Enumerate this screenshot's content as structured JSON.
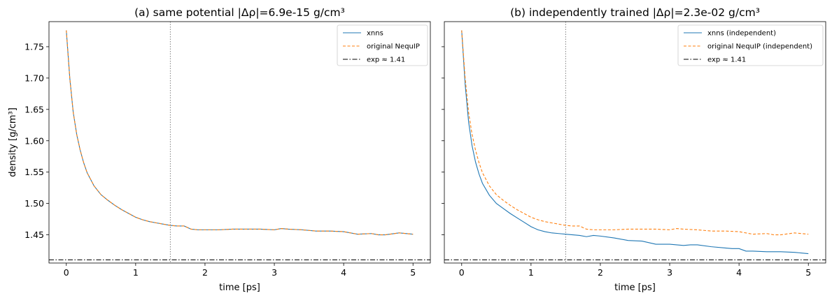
{
  "colors": {
    "blue": "#1f77b4",
    "orange": "#ff7f0e",
    "black": "#000000",
    "gray": "#808080"
  },
  "chart_data": [
    {
      "type": "line",
      "title": "(a) same potential  |Δρ|=6.9e-15 g/cm³",
      "xlabel": "time [ps]",
      "ylabel": "density [g/cm³]",
      "xlim": [
        -0.25,
        5.25
      ],
      "ylim": [
        1.405,
        1.79
      ],
      "xticks": [
        0,
        1,
        2,
        3,
        4,
        5
      ],
      "yticks": [
        1.45,
        1.5,
        1.55,
        1.6,
        1.65,
        1.7,
        1.75
      ],
      "ytick_labels": [
        "1.45",
        "1.50",
        "1.55",
        "1.60",
        "1.65",
        "1.70",
        "1.75"
      ],
      "vline": 1.5,
      "legend_position": "top-right",
      "series": [
        {
          "name": "xnns",
          "style": "solid",
          "color": "#1f77b4",
          "x": [
            0,
            0.05,
            0.1,
            0.15,
            0.2,
            0.25,
            0.3,
            0.4,
            0.5,
            0.6,
            0.7,
            0.8,
            0.9,
            1.0,
            1.1,
            1.2,
            1.3,
            1.4,
            1.5,
            1.6,
            1.7,
            1.8,
            1.9,
            2.0,
            2.2,
            2.4,
            2.6,
            2.8,
            3.0,
            3.1,
            3.2,
            3.4,
            3.6,
            3.8,
            4.0,
            4.2,
            4.4,
            4.5,
            4.6,
            4.8,
            5.0
          ],
          "values": [
            1.776,
            1.7,
            1.645,
            1.61,
            1.585,
            1.565,
            1.549,
            1.528,
            1.514,
            1.505,
            1.497,
            1.49,
            1.484,
            1.478,
            1.474,
            1.471,
            1.469,
            1.467,
            1.465,
            1.464,
            1.464,
            1.459,
            1.458,
            1.458,
            1.458,
            1.459,
            1.459,
            1.459,
            1.458,
            1.46,
            1.459,
            1.458,
            1.456,
            1.456,
            1.455,
            1.451,
            1.452,
            1.45,
            1.45,
            1.453,
            1.451
          ]
        },
        {
          "name": "original NequIP",
          "style": "dashed",
          "color": "#ff7f0e",
          "x": [
            0,
            0.05,
            0.1,
            0.15,
            0.2,
            0.25,
            0.3,
            0.4,
            0.5,
            0.6,
            0.7,
            0.8,
            0.9,
            1.0,
            1.1,
            1.2,
            1.3,
            1.4,
            1.5,
            1.6,
            1.7,
            1.8,
            1.9,
            2.0,
            2.2,
            2.4,
            2.6,
            2.8,
            3.0,
            3.1,
            3.2,
            3.4,
            3.6,
            3.8,
            4.0,
            4.2,
            4.4,
            4.5,
            4.6,
            4.8,
            5.0
          ],
          "values": [
            1.776,
            1.7,
            1.645,
            1.61,
            1.585,
            1.565,
            1.549,
            1.528,
            1.514,
            1.505,
            1.497,
            1.49,
            1.484,
            1.478,
            1.474,
            1.471,
            1.469,
            1.467,
            1.465,
            1.464,
            1.464,
            1.459,
            1.458,
            1.458,
            1.458,
            1.459,
            1.459,
            1.459,
            1.458,
            1.46,
            1.459,
            1.458,
            1.456,
            1.456,
            1.455,
            1.451,
            1.452,
            1.45,
            1.45,
            1.453,
            1.451
          ]
        },
        {
          "name": "exp ≈ 1.41",
          "style": "dashdot",
          "color": "#000000",
          "x": [
            -0.25,
            5.25
          ],
          "values": [
            1.41,
            1.41
          ]
        }
      ]
    },
    {
      "type": "line",
      "title": "(b) independently trained  |Δρ|=2.3e-02 g/cm³",
      "xlabel": "time [ps]",
      "ylabel": "",
      "xlim": [
        -0.25,
        5.25
      ],
      "ylim": [
        1.405,
        1.79
      ],
      "xticks": [
        0,
        1,
        2,
        3,
        4,
        5
      ],
      "yticks": [
        1.45,
        1.5,
        1.55,
        1.6,
        1.65,
        1.7,
        1.75
      ],
      "vline": 1.5,
      "legend_position": "top-right",
      "series": [
        {
          "name": "xnns (independent)",
          "style": "solid",
          "color": "#1f77b4",
          "x": [
            0,
            0.05,
            0.1,
            0.15,
            0.2,
            0.25,
            0.3,
            0.4,
            0.5,
            0.6,
            0.7,
            0.8,
            0.9,
            1.0,
            1.1,
            1.2,
            1.3,
            1.4,
            1.5,
            1.6,
            1.7,
            1.8,
            1.9,
            2.0,
            2.2,
            2.4,
            2.6,
            2.8,
            3.0,
            3.1,
            3.2,
            3.3,
            3.4,
            3.6,
            3.8,
            3.9,
            4.0,
            4.1,
            4.2,
            4.4,
            4.6,
            4.8,
            5.0
          ],
          "values": [
            1.776,
            1.69,
            1.63,
            1.592,
            1.566,
            1.547,
            1.532,
            1.513,
            1.5,
            1.492,
            1.484,
            1.477,
            1.47,
            1.463,
            1.458,
            1.455,
            1.453,
            1.452,
            1.451,
            1.45,
            1.449,
            1.447,
            1.449,
            1.448,
            1.445,
            1.441,
            1.44,
            1.435,
            1.435,
            1.434,
            1.433,
            1.434,
            1.434,
            1.431,
            1.429,
            1.428,
            1.428,
            1.424,
            1.424,
            1.423,
            1.423,
            1.422,
            1.42
          ]
        },
        {
          "name": "original NequIP (independent)",
          "style": "dashed",
          "color": "#ff7f0e",
          "x": [
            0,
            0.05,
            0.1,
            0.15,
            0.2,
            0.25,
            0.3,
            0.4,
            0.5,
            0.6,
            0.7,
            0.8,
            0.9,
            1.0,
            1.1,
            1.2,
            1.3,
            1.4,
            1.5,
            1.6,
            1.7,
            1.8,
            1.9,
            2.0,
            2.2,
            2.4,
            2.6,
            2.8,
            3.0,
            3.1,
            3.2,
            3.4,
            3.6,
            3.8,
            4.0,
            4.2,
            4.4,
            4.5,
            4.6,
            4.8,
            5.0
          ],
          "values": [
            1.776,
            1.7,
            1.645,
            1.61,
            1.585,
            1.565,
            1.549,
            1.528,
            1.514,
            1.505,
            1.497,
            1.49,
            1.484,
            1.478,
            1.474,
            1.471,
            1.469,
            1.467,
            1.465,
            1.464,
            1.464,
            1.459,
            1.458,
            1.458,
            1.458,
            1.459,
            1.459,
            1.459,
            1.458,
            1.46,
            1.459,
            1.458,
            1.456,
            1.456,
            1.455,
            1.451,
            1.452,
            1.45,
            1.45,
            1.453,
            1.451
          ]
        },
        {
          "name": "exp ≈ 1.41",
          "style": "dashdot",
          "color": "#000000",
          "x": [
            -0.25,
            5.25
          ],
          "values": [
            1.41,
            1.41
          ]
        }
      ]
    }
  ]
}
